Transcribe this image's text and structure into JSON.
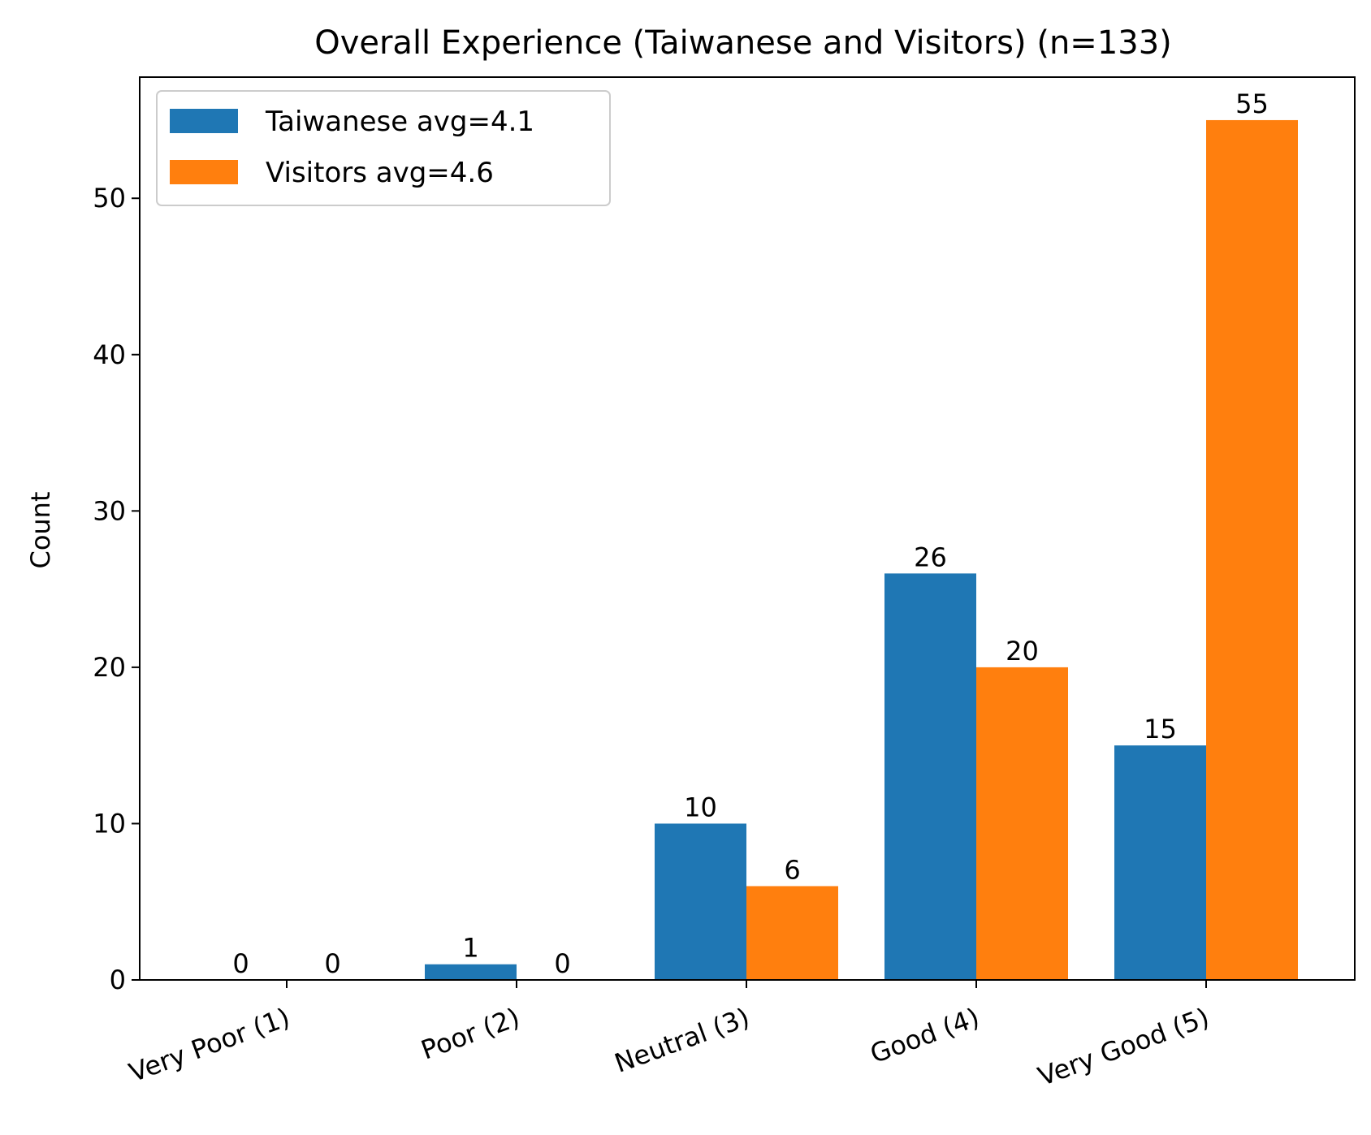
{
  "chart_data": {
    "type": "bar",
    "title": "Overall Experience (Taiwanese and Visitors) (n=133)",
    "xlabel": "",
    "ylabel": "Count",
    "ylim": [
      0,
      57.75
    ],
    "yticks": [
      0,
      10,
      20,
      30,
      40,
      50
    ],
    "categories": [
      "Very Poor (1)",
      "Poor (2)",
      "Neutral (3)",
      "Good (4)",
      "Very Good (5)"
    ],
    "series": [
      {
        "name": "Taiwanese avg=4.1",
        "color": "#1f77b4",
        "values": [
          0,
          1,
          10,
          26,
          15
        ]
      },
      {
        "name": "Visitors avg=4.6",
        "color": "#ff7f0e",
        "values": [
          0,
          0,
          6,
          20,
          55
        ]
      }
    ],
    "grid": false,
    "legend": "top-left"
  }
}
